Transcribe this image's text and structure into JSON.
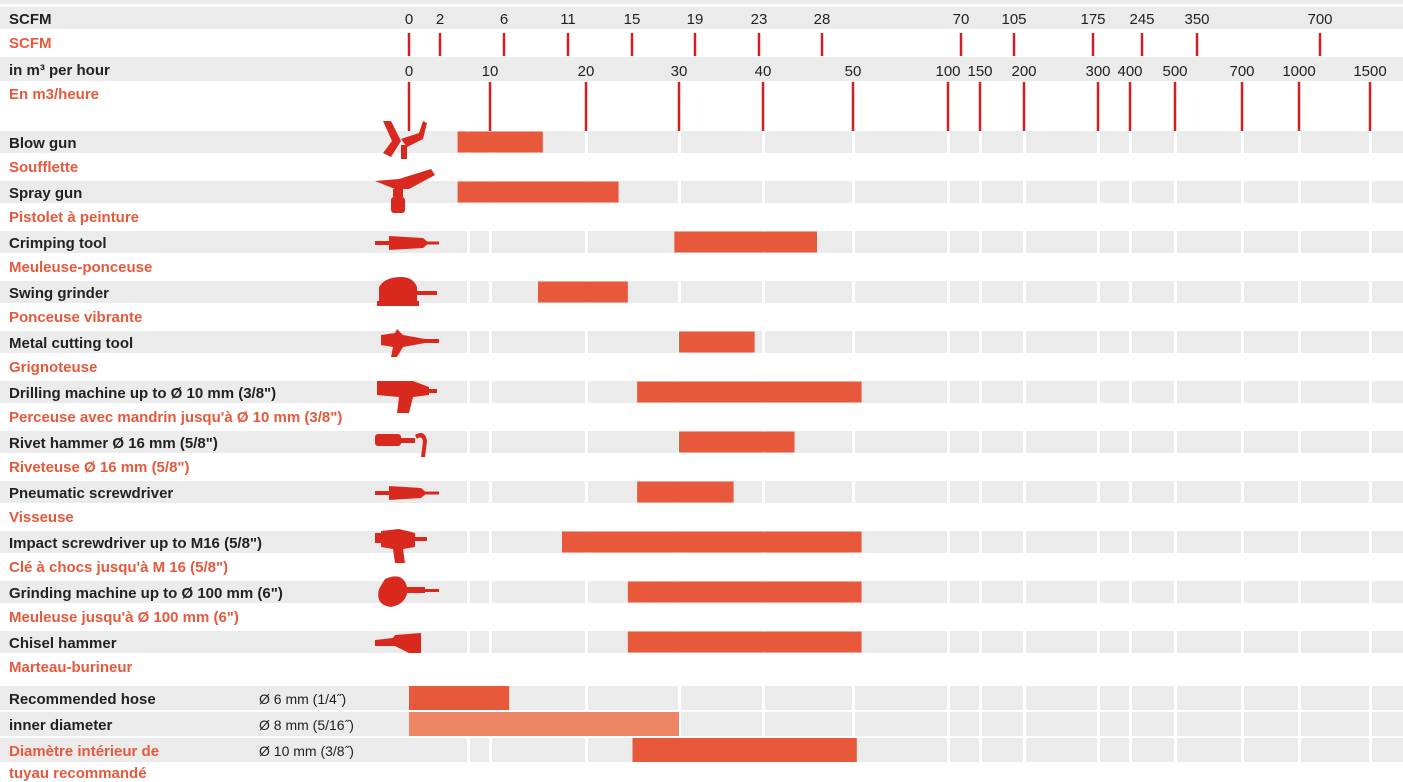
{
  "colors": {
    "accent": "#e8593c",
    "accent_light": "#ee8666",
    "tick_red": "#d21f22",
    "icon_red": "#d9291f",
    "row_bg": "#ebebeb",
    "text_dark": "#222222"
  },
  "header": {
    "scfm_en": "SCFM",
    "scfm_fr": "SCFM",
    "m3_en": "in m³ per hour",
    "m3_fr": "En m3/heure"
  },
  "chart_data": {
    "type": "bar",
    "axis_scfm_ticks": [
      "0",
      "2",
      "6",
      "11",
      "15",
      "19",
      "23",
      "28",
      "70",
      "105",
      "175",
      "245",
      "350",
      "700"
    ],
    "axis_m3_ticks": [
      "0",
      "10",
      "20",
      "30",
      "40",
      "50",
      "100",
      "150",
      "200",
      "300",
      "400",
      "500",
      "700",
      "1000",
      "1500"
    ],
    "categories": [
      {
        "en": "Blow gun",
        "fr": "Soufflette",
        "icon": "blow-gun-icon",
        "from_m3": 6,
        "to_m3": 15.5
      },
      {
        "en": "Spray gun",
        "fr": "Pistolet à peinture",
        "icon": "spray-gun-icon",
        "from_m3": 6,
        "to_m3": 23.5
      },
      {
        "en": "Crimping tool",
        "fr": "Meuleuse-ponceuse",
        "icon": "crimping-tool-icon",
        "from_m3": 29.5,
        "to_m3": 46
      },
      {
        "en": "Swing grinder",
        "fr": "Ponceuse vibrante",
        "icon": "swing-grinder-icon",
        "from_m3": 15,
        "to_m3": 24.5
      },
      {
        "en": "Metal cutting tool",
        "fr": "Grignoteuse",
        "icon": "metal-cutting-tool-icon",
        "from_m3": 30,
        "to_m3": 39
      },
      {
        "en": "Drilling machine up to Ø 10 mm (3/8\")",
        "fr": "Perceuse avec mandrin jusqu'à Ø 10 mm (3/8\")",
        "icon": "drilling-machine-icon",
        "from_m3": 25.5,
        "to_m3": 54.5
      },
      {
        "en": "Rivet hammer Ø 16 mm (5/8\")",
        "fr": "Riveteuse Ø 16 mm (5/8\")",
        "icon": "rivet-hammer-icon",
        "from_m3": 30,
        "to_m3": 43.5
      },
      {
        "en": "Pneumatic screwdriver",
        "fr": "Visseuse",
        "icon": "pneumatic-screwdriver-icon",
        "from_m3": 25.5,
        "to_m3": 36.5
      },
      {
        "en": "Impact screwdriver up to M16 (5/8\")",
        "fr": "Clé à chocs jusqu'à M 16 (5/8\")",
        "icon": "impact-screwdriver-icon",
        "from_m3": 17.5,
        "to_m3": 54.5
      },
      {
        "en": "Grinding machine up to Ø 100 mm (6\")",
        "fr": "Meuleuse jusqu'à Ø 100 mm (6\")",
        "icon": "grinding-machine-icon",
        "from_m3": 24.5,
        "to_m3": 54.5
      },
      {
        "en": "Chisel hammer",
        "fr": "Marteau-burineur",
        "icon": "chisel-hammer-icon",
        "from_m3": 24.5,
        "to_m3": 54.5
      }
    ],
    "hose": {
      "label_en_1": "Recommended hose",
      "label_en_2": "inner diameter",
      "label_fr_1": "Diamètre intérieur de",
      "label_fr_2": "tuyau recommandé",
      "sizes": [
        {
          "label": "Ø  6 mm (1/4˝)",
          "from_m3": 0,
          "to_m3": 12,
          "tone": "dark"
        },
        {
          "label": "Ø  8 mm (5/16˝)",
          "from_m3": 0,
          "to_m3": 30,
          "tone": "light"
        },
        {
          "label": "Ø  10 mm (3/8˝)",
          "from_m3": 25,
          "to_m3": 52,
          "tone": "dark"
        }
      ]
    }
  }
}
